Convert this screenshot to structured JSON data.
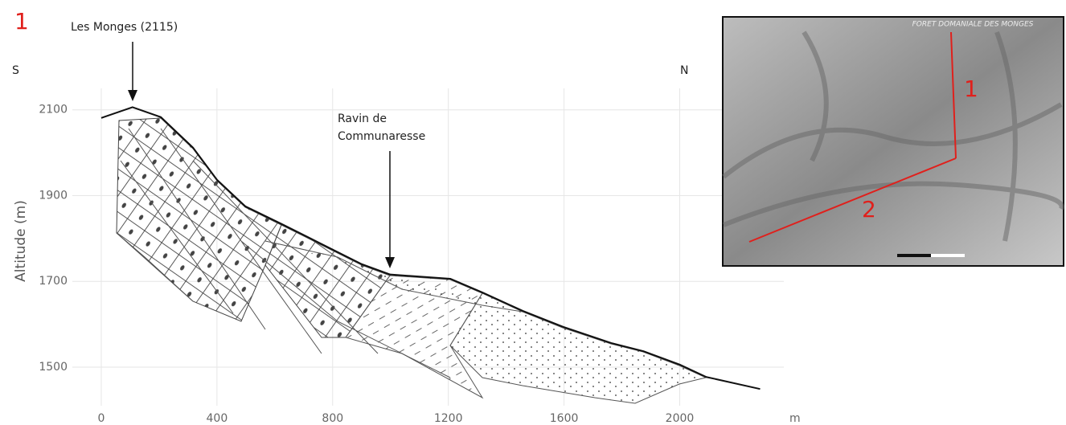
{
  "chart_data": {
    "type": "line",
    "panel_label": "1",
    "y_label": "Altitude (m)",
    "x_label": "m",
    "direction_labels": [
      "S",
      "N"
    ],
    "annotations": [
      [
        "Les Monges (2115)"
      ],
      [
        "Ravin de",
        "Communaresse"
      ]
    ],
    "xlim": [
      -100,
      2360
    ],
    "ylim": [
      1410,
      2150
    ],
    "xticks": [
      0,
      400,
      800,
      1200,
      1600,
      2000
    ],
    "yticks": [
      1500,
      1700,
      1900,
      2100
    ],
    "grid": true,
    "x": [
      0,
      108,
      206,
      317,
      400,
      498,
      623,
      762,
      901,
      999,
      1207,
      1318,
      1458,
      1597,
      1764,
      1875,
      2000,
      2092,
      2278
    ],
    "series": [
      {
        "color": "#111111",
        "values": [
          2081,
          2106,
          2083,
          2012,
          1937,
          1875,
          1834,
          1787,
          1740,
          1716,
          1706,
          1674,
          1631,
          1594,
          1556,
          1537,
          1506,
          1477,
          1449
        ]
      }
    ]
  },
  "inset": {
    "title": "FORET DOMANIALE DES MONGES",
    "labels": [
      "1",
      "2"
    ]
  }
}
